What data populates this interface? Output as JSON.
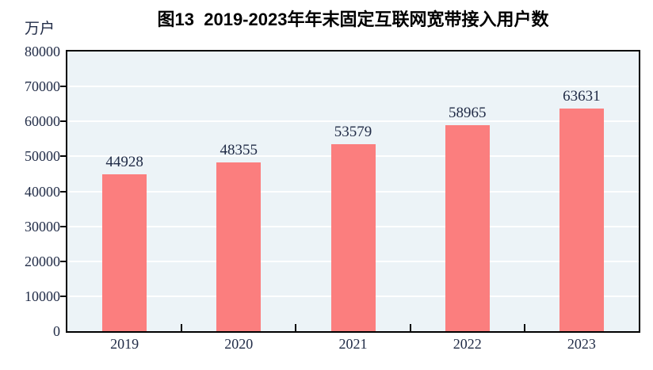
{
  "chart_data": {
    "type": "bar",
    "title": "图13  2019-2023年年末固定互联网宽带接入用户数",
    "unit_label": "万户",
    "categories": [
      "2019",
      "2020",
      "2021",
      "2022",
      "2023"
    ],
    "values": [
      44928,
      48355,
      53579,
      58965,
      63631
    ],
    "data_labels": [
      "44928",
      "48355",
      "53579",
      "58965",
      "63631"
    ],
    "xlabel": "",
    "ylabel": "万户",
    "ylim": [
      0,
      80000
    ],
    "ytick_step": 10000,
    "yticks": [
      0,
      10000,
      20000,
      30000,
      40000,
      50000,
      60000,
      70000,
      80000
    ],
    "grid": true,
    "legend_position": "none",
    "colors": {
      "bar": "#FB7E7E",
      "plot_background": "#ECF3F7",
      "gridline": "#FFFFFF",
      "axis": "#000000",
      "text": "#212C47",
      "title": "#000000",
      "page_background": "#FFFFFF"
    }
  }
}
